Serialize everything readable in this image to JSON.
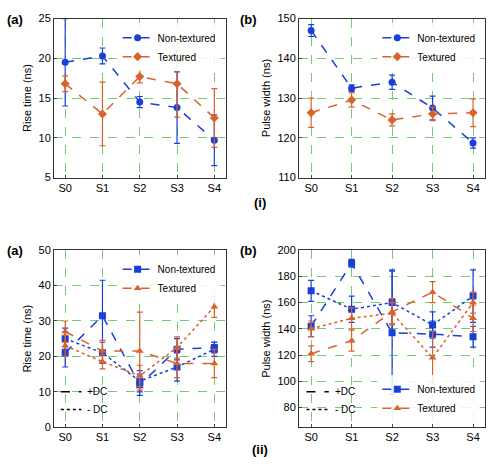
{
  "figure_labels": [
    "(i)",
    "(ii)"
  ],
  "chart_data": [
    {
      "type": "line",
      "title": "(a)",
      "y_label": "Rise time (ns)",
      "categories": [
        "S0",
        "S1",
        "S2",
        "S3",
        "S4"
      ],
      "ylim": [
        5,
        25
      ],
      "yticks": [
        5,
        10,
        15,
        20,
        25
      ],
      "grid": true,
      "legend": "top right",
      "series": [
        {
          "name": "Non-textured",
          "color": "#1a3fd9",
          "marker": "circle",
          "line_style": "dash",
          "values": [
            19.5,
            20.3,
            14.5,
            13.8,
            9.7
          ],
          "errors": [
            5.5,
            1.0,
            0.7,
            4.5,
            3.2
          ]
        },
        {
          "name": "Textured",
          "color": "#d9622b",
          "marker": "diamond",
          "line_style": "dash",
          "values": [
            16.8,
            13.0,
            17.7,
            16.8,
            12.5
          ],
          "errors": [
            1.0,
            4.0,
            0.8,
            4.2,
            3.7
          ]
        }
      ]
    },
    {
      "type": "line",
      "title": "(b)",
      "y_label": "Pulse width (ns)",
      "categories": [
        "S0",
        "S1",
        "S2",
        "S3",
        "S4"
      ],
      "ylim": [
        110,
        150
      ],
      "yticks": [
        110,
        120,
        130,
        140,
        150
      ],
      "grid": true,
      "legend": "top right",
      "series": [
        {
          "name": "Non-textured",
          "color": "#1a3fd9",
          "marker": "circle",
          "line_style": "dash",
          "values": [
            147.0,
            132.5,
            134.0,
            127.5,
            118.7
          ],
          "errors": [
            1.5,
            0.8,
            1.8,
            3.0,
            1.3
          ]
        },
        {
          "name": "Textured",
          "color": "#d9622b",
          "marker": "diamond",
          "line_style": "dash",
          "values": [
            126.3,
            129.5,
            124.5,
            126.0,
            126.3
          ],
          "errors": [
            3.7,
            1.8,
            1.5,
            1.7,
            3.5
          ]
        }
      ]
    },
    {
      "type": "line",
      "title": "(a)",
      "y_label": "Rise time (ns)",
      "categories": [
        "S0",
        "S1",
        "S2",
        "S3",
        "S4"
      ],
      "ylim": [
        0,
        50
      ],
      "yticks": [
        0,
        10,
        20,
        30,
        40,
        50
      ],
      "grid": true,
      "legend": "top right",
      "annotations": [
        {
          "text": "+DC",
          "line_style": "dash"
        },
        {
          "text": "- DC",
          "line_style": "dot"
        }
      ],
      "series": [
        {
          "name": "Non-textured",
          "color": "#1a3fd9",
          "marker": "square",
          "line_style": "dash",
          "values": [
            21.0,
            31.5,
            12.0,
            22.0,
            22.5
          ],
          "errors": [
            4.0,
            10.0,
            3.0,
            3.0,
            1.5
          ]
        },
        {
          "name": "Non-textured",
          "color": "#1a3fd9",
          "marker": "square",
          "line_style": "dot",
          "values": [
            25.0,
            21.0,
            13.0,
            17.0,
            22.0
          ],
          "errors": [
            3.0,
            3.0,
            3.0,
            4.0,
            2.0
          ]
        },
        {
          "name": "Textured",
          "color": "#d9622b",
          "marker": "triangle-up",
          "line_style": "dash",
          "values": [
            27.0,
            21.5,
            21.5,
            18.0,
            18.0
          ],
          "errors": [
            3.0,
            3.0,
            11.0,
            4.0,
            4.0
          ]
        },
        {
          "name": "Textured",
          "color": "#d9622b",
          "marker": "triangle-up",
          "line_style": "dot",
          "values": [
            23.0,
            18.5,
            14.5,
            22.5,
            34.0
          ],
          "errors": [
            3.0,
            2.0,
            3.0,
            3.0,
            3.0
          ]
        }
      ]
    },
    {
      "type": "line",
      "title": "(b)",
      "y_label": "Pulse width (ns)",
      "categories": [
        "S0",
        "S1",
        "S2",
        "S3",
        "S4"
      ],
      "ylim": [
        65,
        200
      ],
      "yticks": [
        80,
        100,
        120,
        140,
        160,
        180,
        200
      ],
      "grid": true,
      "legend": "bottom right",
      "annotations": [
        {
          "text": "+DC",
          "line_style": "dash"
        },
        {
          "text": "- DC",
          "line_style": "dot"
        }
      ],
      "series": [
        {
          "name": "Non-textured",
          "color": "#1a3fd9",
          "marker": "square",
          "line_style": "dash",
          "values": [
            142.0,
            190.0,
            137.0,
            136.0,
            134.0
          ],
          "errors": [
            8.0,
            3.0,
            47.0,
            10.0,
            8.0
          ]
        },
        {
          "name": "Non-textured",
          "color": "#1a3fd9",
          "marker": "square",
          "line_style": "dot",
          "values": [
            169.0,
            155.0,
            160.0,
            143.0,
            165.0
          ],
          "errors": [
            8.0,
            10.0,
            25.0,
            10.0,
            20.0
          ]
        },
        {
          "name": "Textured",
          "color": "#d9622b",
          "marker": "triangle-up",
          "line_style": "dash",
          "values": [
            121.0,
            131.0,
            153.0,
            168.0,
            148.0
          ],
          "errors": [
            6.0,
            8.0,
            10.0,
            8.0,
            10.0
          ]
        },
        {
          "name": "Textured",
          "color": "#d9622b",
          "marker": "triangle-up",
          "line_style": "dot",
          "values": [
            140.0,
            148.0,
            152.0,
            118.0,
            160.0
          ],
          "errors": [
            6.0,
            8.0,
            8.0,
            20.0,
            8.0
          ]
        }
      ]
    }
  ]
}
